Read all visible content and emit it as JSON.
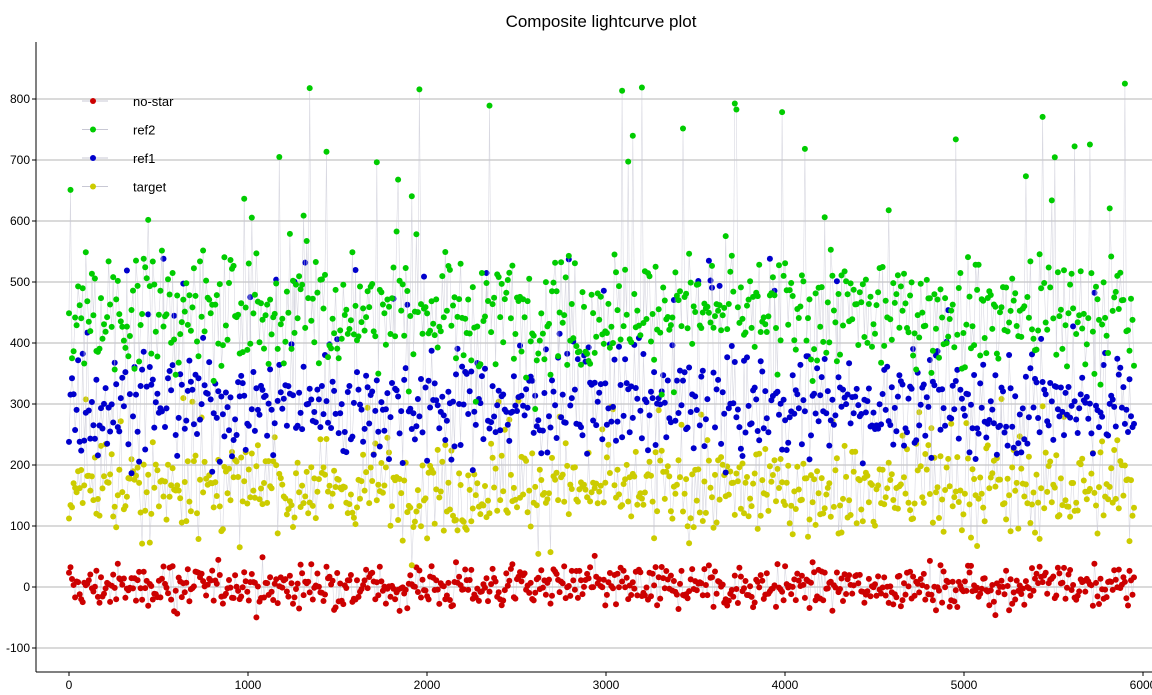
{
  "chart_data": {
    "type": "scatter",
    "title": "Composite lightcurve plot",
    "xlabel": "",
    "ylabel": "",
    "xlim": [
      -200,
      6000
    ],
    "ylim": [
      -120,
      890
    ],
    "xticks": [
      0,
      1000,
      2000,
      3000,
      4000,
      5000,
      6000
    ],
    "yticks": [
      -100,
      0,
      100,
      200,
      300,
      400,
      500,
      600,
      700,
      800
    ],
    "grid": true,
    "legend_position": "top-left",
    "x_max_point": 5950,
    "series": [
      {
        "name": "no-star",
        "color": "#cc0000",
        "mean": 0,
        "spread": 25,
        "peak_height": 60
      },
      {
        "name": "ref2",
        "color": "#00cc00",
        "mean": 450,
        "spread": 70,
        "peak_height": 380
      },
      {
        "name": "ref1",
        "color": "#0000cc",
        "mean": 300,
        "spread": 60,
        "peak_height": 240
      },
      {
        "name": "target",
        "color": "#cccc00",
        "mean": 160,
        "spread": 55,
        "peak_height": 150
      }
    ],
    "legend_order": [
      "no-star",
      "ref2",
      "ref1",
      "target"
    ]
  }
}
